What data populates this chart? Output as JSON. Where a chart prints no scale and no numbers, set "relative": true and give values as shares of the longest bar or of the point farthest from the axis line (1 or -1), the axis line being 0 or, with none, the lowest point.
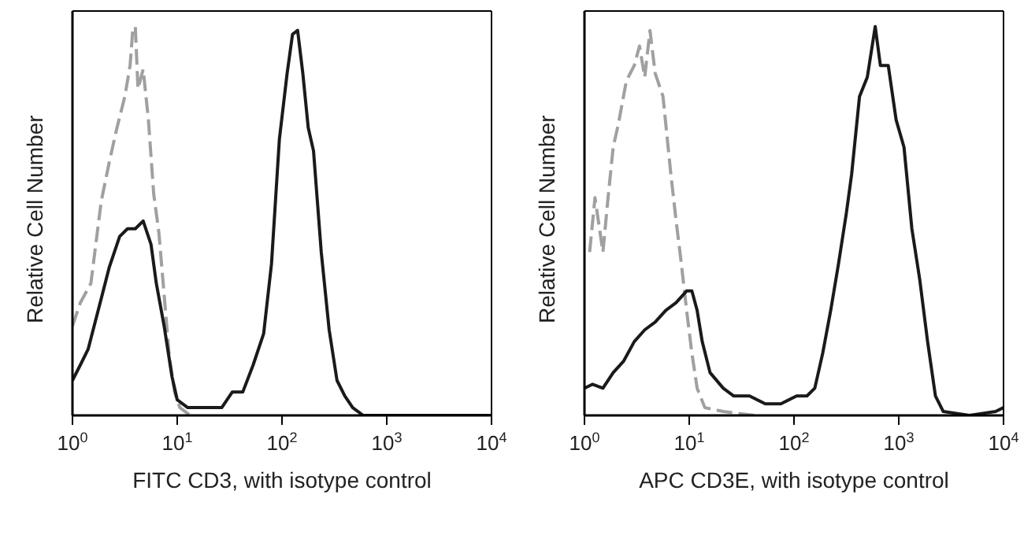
{
  "chart_data": [
    {
      "type": "line",
      "relative": true,
      "log": "x",
      "xlabel": "FITC CD3, with isotype control",
      "ylabel": "Relative Cell Number",
      "xlim": [
        1,
        10000
      ],
      "xticks": [
        {
          "value": 1,
          "label": "10$^{0}$"
        },
        {
          "value": 10,
          "label": "10$^{1}$"
        },
        {
          "value": 100,
          "label": "10$^{2}$"
        },
        {
          "value": 1000,
          "label": "10$^{3}$"
        },
        {
          "value": 10000,
          "label": "10$^{4}$"
        }
      ],
      "marker": "none",
      "series": [
        {
          "color": "#a0a0a0",
          "line_style": "dashed",
          "x": [
            1,
            1.19,
            1.5,
            1.88,
            2.24,
            2.66,
            3.16,
            3.55,
            3.76,
            3.98,
            4.22,
            4.73,
            5.31,
            5.96,
            6.68,
            7.5,
            8.41,
            9.44,
            10.6,
            13.3
          ],
          "values": [
            0.23,
            0.29,
            0.34,
            0.55,
            0.65,
            0.74,
            0.82,
            0.9,
            0.99,
            1,
            0.84,
            0.89,
            0.76,
            0.57,
            0.47,
            0.31,
            0.15,
            0.06,
            0.02,
            0
          ]
        },
        {
          "color": "#1a1a1a",
          "line_style": "solid",
          "x": [
            1,
            1.19,
            1.41,
            1.88,
            2.24,
            2.82,
            3.35,
            3.98,
            4.73,
            5.62,
            6.31,
            7.5,
            8.91,
            10,
            12.6,
            18.8,
            26.6,
            33.5,
            42.2,
            53.1,
            66.8,
            79.4,
            94.4,
            112,
            126,
            141,
            158,
            178,
            200,
            237,
            282,
            335,
            398,
            473,
            596,
            1059,
            10000
          ],
          "values": [
            0.09,
            0.13,
            0.17,
            0.3,
            0.38,
            0.46,
            0.48,
            0.48,
            0.5,
            0.44,
            0.34,
            0.23,
            0.1,
            0.04,
            0.02,
            0.02,
            0.02,
            0.06,
            0.06,
            0.13,
            0.21,
            0.39,
            0.71,
            0.88,
            0.98,
            0.99,
            0.88,
            0.74,
            0.68,
            0.42,
            0.22,
            0.09,
            0.05,
            0.02,
            0,
            0,
            0
          ]
        }
      ]
    },
    {
      "type": "line",
      "relative": true,
      "log": "x",
      "xlabel": "APC CD3E, with isotype control",
      "ylabel": "Relative Cell Number",
      "xlim": [
        1,
        10000
      ],
      "xticks": [
        {
          "value": 1,
          "label": "10$^{0}$"
        },
        {
          "value": 10,
          "label": "10$^{1}$"
        },
        {
          "value": 100,
          "label": "10$^{2}$"
        },
        {
          "value": 1000,
          "label": "10$^{3}$"
        },
        {
          "value": 10000,
          "label": "10$^{4}$"
        }
      ],
      "marker": "none",
      "series": [
        {
          "color": "#a0a0a0",
          "line_style": "dashed",
          "x": [
            1.12,
            1.26,
            1.5,
            1.68,
            1.88,
            2.11,
            2.51,
            2.99,
            3.35,
            3.76,
            4.22,
            4.73,
            5.62,
            6.68,
            7.5,
            8.41,
            9.44,
            10.6,
            11.9,
            14.1,
            21.1,
            42.2
          ],
          "values": [
            0.42,
            0.56,
            0.42,
            0.56,
            0.69,
            0.75,
            0.86,
            0.9,
            0.95,
            0.87,
            0.99,
            0.88,
            0.82,
            0.62,
            0.5,
            0.39,
            0.27,
            0.16,
            0.07,
            0.02,
            0.01,
            0
          ]
        },
        {
          "color": "#1a1a1a",
          "line_style": "solid",
          "x": [
            1,
            1.19,
            1.5,
            1.88,
            2.37,
            2.99,
            3.76,
            4.73,
            5.96,
            7.5,
            9.44,
            10.6,
            11.9,
            13.3,
            15.8,
            21.1,
            26.6,
            37.6,
            53.1,
            75,
            106,
            133,
            158,
            188,
            224,
            266,
            316,
            355,
            422,
            501,
            596,
            668,
            794,
            944,
            1122,
            1334,
            1585,
            1884,
            2239,
            2661,
            4732,
            8414,
            10000
          ],
          "values": [
            0.07,
            0.08,
            0.07,
            0.11,
            0.14,
            0.19,
            0.22,
            0.24,
            0.27,
            0.29,
            0.32,
            0.32,
            0.27,
            0.19,
            0.11,
            0.07,
            0.05,
            0.05,
            0.03,
            0.03,
            0.05,
            0.05,
            0.07,
            0.16,
            0.27,
            0.39,
            0.52,
            0.62,
            0.82,
            0.87,
            1,
            0.9,
            0.9,
            0.76,
            0.69,
            0.48,
            0.35,
            0.19,
            0.05,
            0.01,
            0,
            0.01,
            0.02
          ]
        }
      ]
    }
  ]
}
